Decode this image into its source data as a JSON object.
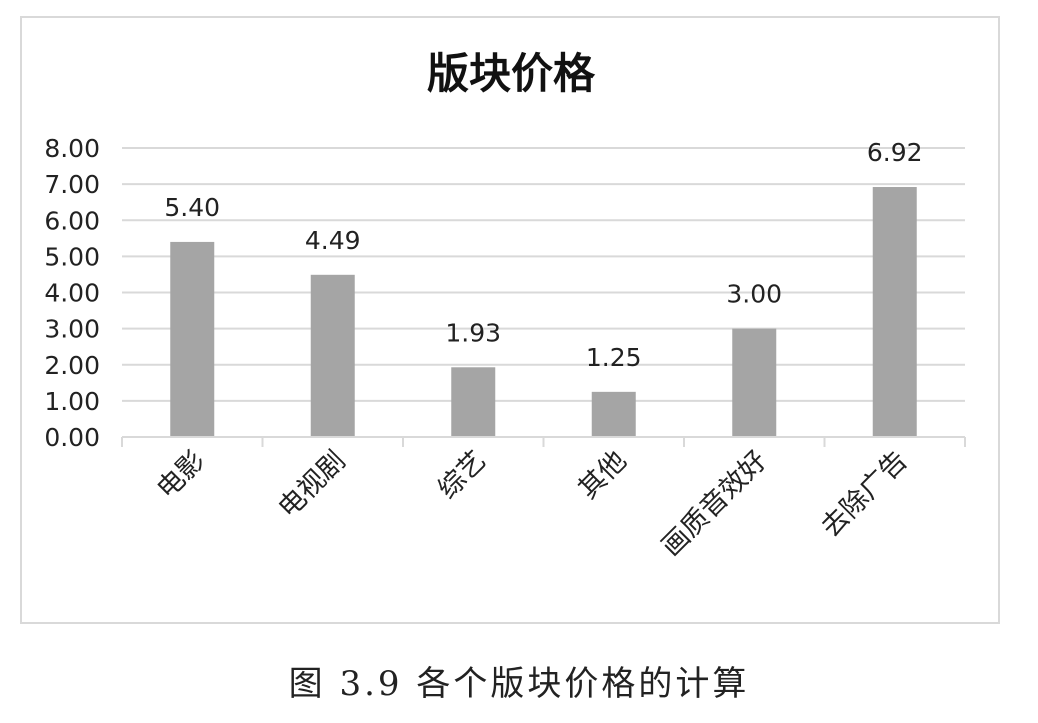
{
  "chart_data": {
    "type": "bar",
    "title": "版块价格",
    "categories": [
      "电影",
      "电视剧",
      "综艺",
      "其他",
      "画质音效好",
      "去除广告"
    ],
    "values": [
      5.4,
      4.49,
      1.93,
      1.25,
      3.0,
      6.92
    ],
    "data_labels": [
      "5.40",
      "4.49",
      "1.93",
      "1.25",
      "3.00",
      "6.92"
    ],
    "ylim": [
      0,
      8
    ],
    "yticks": [
      "0.00",
      "1.00",
      "2.00",
      "3.00",
      "4.00",
      "5.00",
      "6.00",
      "7.00",
      "8.00"
    ],
    "xlabel": "",
    "ylabel": "",
    "grid": true,
    "bar_color": "#a5a5a5",
    "grid_color": "#d9d9d9"
  },
  "caption": "图 3.9 各个版块价格的计算"
}
